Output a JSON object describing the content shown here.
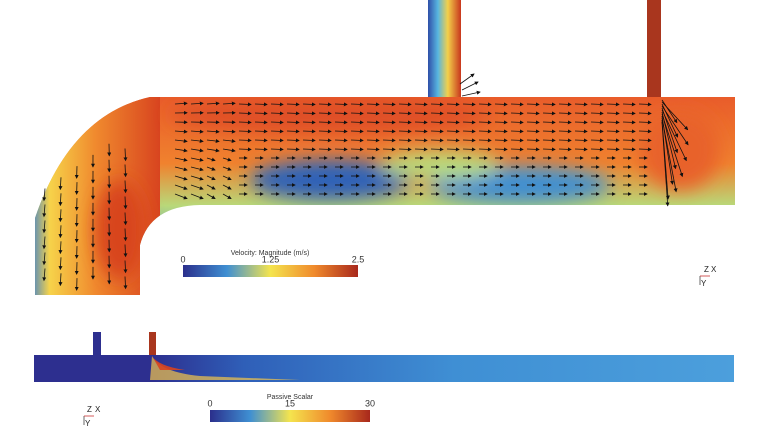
{
  "colorbars": [
    {
      "title": "Velocity: Magnitude (m/s)",
      "range": [
        0,
        2.5
      ],
      "ticks": [
        0,
        1.25,
        2.5
      ]
    },
    {
      "title": "Passive Scalar",
      "range": [
        0,
        30
      ],
      "ticks": [
        0,
        15,
        30
      ]
    }
  ],
  "triads": [
    {
      "z": "Z",
      "x": "X",
      "y": "Y"
    },
    {
      "z": "Z",
      "x": "X",
      "y": "Y"
    }
  ]
}
